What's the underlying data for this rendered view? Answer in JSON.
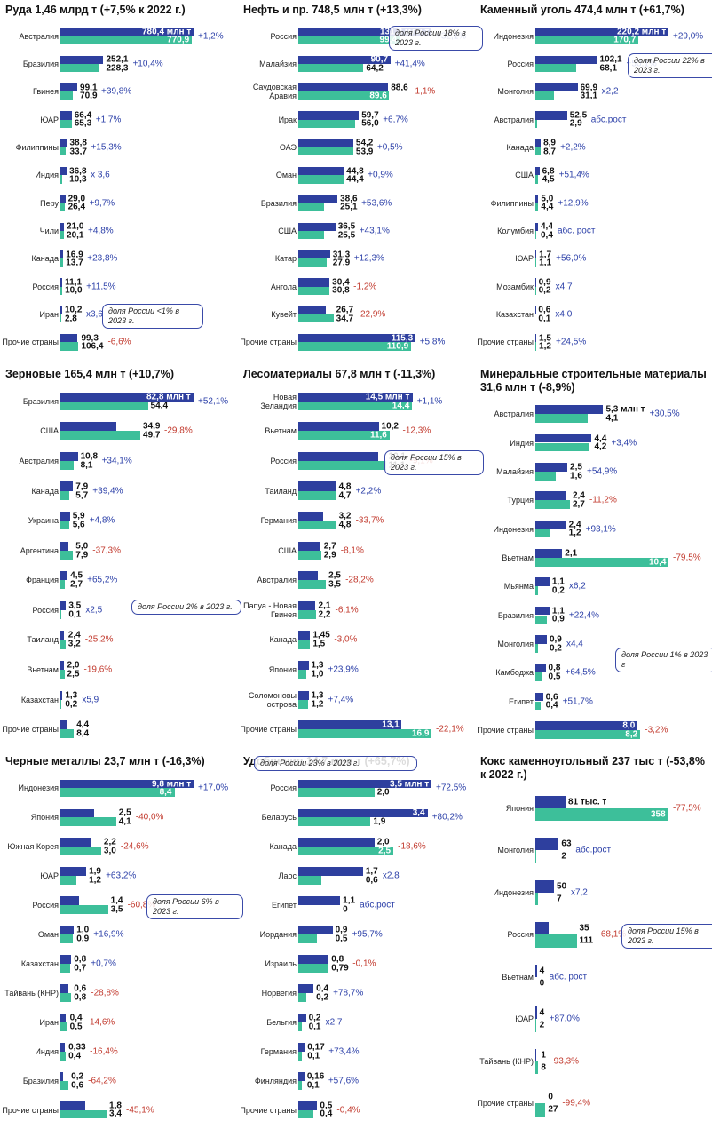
{
  "chart_data": [
    {
      "type": "paired-bar",
      "title": "Руда 1,46 млрд т (+7,5% к 2022 г.)",
      "categories": [
        "Австралия",
        "Бразилия",
        "Гвинея",
        "ЮАР",
        "Филиппины",
        "Индия",
        "Перу",
        "Чили",
        "Канада",
        "Россия",
        "Иран",
        "Прочие страны"
      ],
      "series": [
        {
          "color": "#2e3f9e",
          "values": [
            780.4,
            252.1,
            99.1,
            66.4,
            38.8,
            36.8,
            29.0,
            21.0,
            16.9,
            11.1,
            10.2,
            99.3
          ],
          "value_labels": [
            "780,4 млн т",
            "252,1",
            "99,1",
            "66,4",
            "38,8",
            "36,8",
            "29,0",
            "21,0",
            "16,9",
            "11,1",
            "10,2",
            "99,3"
          ]
        },
        {
          "color": "#3dbf9a",
          "values": [
            770.9,
            228.3,
            70.9,
            65.3,
            33.7,
            10.3,
            26.4,
            20.1,
            13.7,
            10.0,
            2.8,
            106.4
          ],
          "value_labels": [
            "770,9",
            "228,3",
            "70,9",
            "65,3",
            "33,7",
            "10,3",
            "26,4",
            "20,1",
            "13,7",
            "10,0",
            "2,8",
            "106,4"
          ]
        }
      ],
      "changes": [
        "+1,2%",
        "+10,4%",
        "+39,8%",
        "+1,7%",
        "+15,3%",
        "x 3,6",
        "+9,7%",
        "+4,8%",
        "+23,8%",
        "+11,5%",
        "x3,6",
        "-6,6%"
      ],
      "note": "доля России <1% в 2023 г."
    },
    {
      "type": "paired-bar",
      "title": "Нефть и пр. 748,5 млн т (+13,3%)",
      "categories": [
        "Россия",
        "Малайзия",
        "Саудовская Аравия",
        "Ирак",
        "ОАЭ",
        "Оман",
        "Бразилия",
        "США",
        "Катар",
        "Ангола",
        "Кувейт",
        "Прочие страны"
      ],
      "series": [
        {
          "color": "#2e3f9e",
          "values": [
            131.3,
            90.7,
            88.6,
            59.7,
            54.2,
            44.8,
            38.6,
            36.5,
            31.3,
            30.4,
            26.7,
            115.3
          ],
          "value_labels": [
            "131,3 млн т",
            "90,7",
            "88,6",
            "59,7",
            "54,2",
            "44,8",
            "38,6",
            "36,5",
            "31,3",
            "30,4",
            "26,7",
            "115,3"
          ]
        },
        {
          "color": "#3dbf9a",
          "values": [
            99.4,
            64.2,
            89.6,
            56.0,
            53.9,
            44.4,
            25.1,
            25.5,
            27.9,
            30.8,
            34.7,
            110.9
          ],
          "value_labels": [
            "99,4",
            "64,2",
            "89,6",
            "56,0",
            "53,9",
            "44,4",
            "25,1",
            "25,5",
            "27,9",
            "30,8",
            "34,7",
            "110,9"
          ]
        }
      ],
      "changes": [
        "+32,1%",
        "+41,4%",
        "-1,1%",
        "+6,7%",
        "+0,5%",
        "+0,9%",
        "+53,6%",
        "+43,1%",
        "+12,3%",
        "-1,2%",
        "-22,9%",
        "+5,8%"
      ],
      "note": "доля России 18% в 2023 г."
    },
    {
      "type": "paired-bar",
      "title": "Каменный уголь 474,4 млн т (+61,7%)",
      "categories": [
        "Индонезия",
        "Россия",
        "Монголия",
        "Австралия",
        "Канада",
        "США",
        "Филиппины",
        "Колумбия",
        "ЮАР",
        "Мозамбик",
        "Казахстан",
        "Прочие страны"
      ],
      "series": [
        {
          "color": "#2e3f9e",
          "values": [
            220.2,
            102.1,
            69.9,
            52.5,
            8.9,
            6.8,
            5.0,
            4.4,
            1.7,
            0.9,
            0.6,
            1.5
          ],
          "value_labels": [
            "220,2 млн т",
            "102,1",
            "69,9",
            "52,5",
            "8,9",
            "6,8",
            "5,0",
            "4,4",
            "1,7",
            "0,9",
            "0,6",
            "1,5"
          ]
        },
        {
          "color": "#3dbf9a",
          "values": [
            170.7,
            68.1,
            31.1,
            2.9,
            8.7,
            4.5,
            4.4,
            0.4,
            1.1,
            0.2,
            0.1,
            1.2
          ],
          "value_labels": [
            "170,7",
            "68,1",
            "31,1",
            "2,9",
            "8,7",
            "4,5",
            "4,4",
            "0,4",
            "1,1",
            "0,2",
            "0,1",
            "1,2"
          ]
        }
      ],
      "changes": [
        "+29,0%",
        "+50,1%",
        "x2,2",
        "абс.рост",
        "+2,2%",
        "+51,4%",
        "+12,9%",
        "абс. рост",
        "+56,0%",
        "x4,7",
        "x4,0",
        "+24,5%"
      ],
      "note": "доля России 22% в 2023 г."
    },
    {
      "type": "paired-bar",
      "title": "Зерновые 165,4 млн т (+10,7%)",
      "categories": [
        "Бразилия",
        "США",
        "Австралия",
        "Канада",
        "Украина",
        "Аргентина",
        "Франция",
        "Россия",
        "Таиланд",
        "Вьетнам",
        "Казахстан",
        "Прочие страны"
      ],
      "series": [
        {
          "color": "#2e3f9e",
          "values": [
            82.8,
            34.9,
            10.8,
            7.9,
            5.9,
            5.0,
            4.5,
            3.5,
            2.4,
            2.0,
            1.3,
            4.4
          ],
          "value_labels": [
            "82,8 млн т",
            "34,9",
            "10,8",
            "7,9",
            "5,9",
            "5,0",
            "4,5",
            "3,5",
            "2,4",
            "2,0",
            "1,3",
            "4,4"
          ]
        },
        {
          "color": "#3dbf9a",
          "values": [
            54.4,
            49.7,
            8.1,
            5.7,
            5.6,
            7.9,
            2.7,
            0.1,
            3.2,
            2.5,
            0.2,
            8.4
          ],
          "value_labels": [
            "54,4",
            "49,7",
            "8,1",
            "5,7",
            "5,6",
            "7,9",
            "2,7",
            "0,1",
            "3,2",
            "2,5",
            "0,2",
            "8,4"
          ]
        }
      ],
      "changes": [
        "+52,1%",
        "-29,8%",
        "+34,1%",
        "+39,4%",
        "+4,8%",
        "-37,3%",
        "+65,2%",
        "x2,5",
        "-25,2%",
        "-19,6%",
        "x5,9",
        null
      ],
      "note": "доля России 2% в 2023 г."
    },
    {
      "type": "paired-bar",
      "title": "Лесоматериалы 67,8 млн т (-11,3%)",
      "categories": [
        "Новая Зеландия",
        "Вьетнам",
        "Россия",
        "Таиланд",
        "Германия",
        "США",
        "Австралия",
        "Папуа - Новая Гвинея",
        "Канада",
        "Япония",
        "Соломоновы острова",
        "Прочие страны"
      ],
      "series": [
        {
          "color": "#2e3f9e",
          "values": [
            14.5,
            10.2,
            10.1,
            4.8,
            3.2,
            2.7,
            2.5,
            2.1,
            1.45,
            1.3,
            1.3,
            13.1
          ],
          "value_labels": [
            "14,5 млн т",
            "10,2",
            "10,1",
            "4,8",
            "3,2",
            "2,7",
            "2,5",
            "2,1",
            "1,45",
            "1,3",
            "1,3",
            "13,1"
          ]
        },
        {
          "color": "#3dbf9a",
          "values": [
            14.4,
            11.6,
            11.1,
            4.7,
            4.8,
            2.9,
            3.5,
            2.2,
            1.5,
            1.0,
            1.2,
            16.9
          ],
          "value_labels": [
            "14,4",
            "11,6",
            "11,1",
            "4,7",
            "4,8",
            "2,9",
            "3,5",
            "2,2",
            "1,5",
            "1,0",
            "1,2",
            "16,9"
          ]
        }
      ],
      "changes": [
        "+1,1%",
        "-12,3%",
        "-9,1%",
        "+2,2%",
        "-33,7%",
        "-8,1%",
        "-28,2%",
        "-6,1%",
        "-3,0%",
        "+23,9%",
        "+7,4%",
        "-22,1%"
      ],
      "note": "доля России 15% в 2023 г."
    },
    {
      "type": "paired-bar",
      "title": "Минеральные строительные материалы 31,6 млн т (-8,9%)",
      "categories": [
        "Австралия",
        "Индия",
        "Малайзия",
        "Турция",
        "Индонезия",
        "Вьетнам",
        "Мьянма",
        "Бразилия",
        "Монголия",
        "Камбоджа",
        "Египет",
        "Прочие страны"
      ],
      "series": [
        {
          "color": "#2e3f9e",
          "values": [
            5.3,
            4.4,
            2.5,
            2.4,
            2.4,
            2.1,
            1.1,
            1.1,
            0.9,
            0.8,
            0.6,
            8.0
          ],
          "value_labels": [
            "5,3 млн т",
            "4,4",
            "2,5",
            "2,4",
            "2,4",
            "2,1",
            "1,1",
            "1,1",
            "0,9",
            "0,8",
            "0,6",
            "8,0"
          ]
        },
        {
          "color": "#3dbf9a",
          "values": [
            4.1,
            4.2,
            1.6,
            2.7,
            1.2,
            10.4,
            0.2,
            0.9,
            0.2,
            0.5,
            0.4,
            8.2
          ],
          "value_labels": [
            "4,1",
            "4,2",
            "1,6",
            "2,7",
            "1,2",
            "10,4",
            "0,2",
            "0,9",
            "0,2",
            "0,5",
            "0,4",
            "8,2"
          ]
        }
      ],
      "changes": [
        "+30,5%",
        "+3,4%",
        "+54,9%",
        "-11,2%",
        "+93,1%",
        "-79,5%",
        "x6,2",
        "+22,4%",
        "x4,4",
        "+64,5%",
        "+51,7%",
        "-3,2%"
      ],
      "note": "доля России 1% в 2023 г"
    },
    {
      "type": "paired-bar",
      "title": "Черные металлы 23,7 млн т (-16,3%)",
      "categories": [
        "Индонезия",
        "Япония",
        "Южная Корея",
        "ЮАР",
        "Россия",
        "Оман",
        "Казахстан",
        "Тайвань (КНР)",
        "Иран",
        "Индия",
        "Бразилия",
        "Прочие страны"
      ],
      "series": [
        {
          "color": "#2e3f9e",
          "values": [
            9.8,
            2.5,
            2.2,
            1.9,
            1.4,
            1.0,
            0.8,
            0.6,
            0.4,
            0.33,
            0.2,
            1.8
          ],
          "value_labels": [
            "9,8 млн т",
            "2,5",
            "2,2",
            "1,9",
            "1,4",
            "1,0",
            "0,8",
            "0,6",
            "0,4",
            "0,33",
            "0,2",
            "1,8"
          ]
        },
        {
          "color": "#3dbf9a",
          "values": [
            8.4,
            4.1,
            3.0,
            1.2,
            3.5,
            0.9,
            0.7,
            0.8,
            0.5,
            0.4,
            0.6,
            3.4
          ],
          "value_labels": [
            "8,4",
            "4,1",
            "3,0",
            "1,2",
            "3,5",
            "0,9",
            "0,7",
            "0,8",
            "0,5",
            "0,4",
            "0,6",
            "3,4"
          ]
        }
      ],
      "changes": [
        "+17,0%",
        "-40,0%",
        "-24,6%",
        "+63,2%",
        "-60,8%",
        "+16,9%",
        "+0,7%",
        "-28,8%",
        "-14,6%",
        "-16,4%",
        "-64,2%",
        "-45,1%"
      ],
      "note": "доля России 6% в 2023 г."
    },
    {
      "type": "paired-bar",
      "title": "Удобрения 14,7 млн т (+65,7%)",
      "categories": [
        "Россия",
        "Беларусь",
        "Канада",
        "Лаос",
        "Египет",
        "Иордания",
        "Израиль",
        "Норвегия",
        "Бельгия",
        "Германия",
        "Финляндия",
        "Прочие страны"
      ],
      "series": [
        {
          "color": "#2e3f9e",
          "values": [
            3.5,
            3.4,
            2.0,
            1.7,
            1.1,
            0.9,
            0.8,
            0.4,
            0.2,
            0.17,
            0.16,
            0.5
          ],
          "value_labels": [
            "3,5 млн т",
            "3,4",
            "2,0",
            "1,7",
            "1,1",
            "0,9",
            "0,8",
            "0,4",
            "0,2",
            "0,17",
            "0,16",
            "0,5"
          ]
        },
        {
          "color": "#3dbf9a",
          "values": [
            2.0,
            1.9,
            2.5,
            0.6,
            0,
            0.5,
            0.79,
            0.2,
            0.1,
            0.1,
            0.1,
            0.4
          ],
          "value_labels": [
            "2,0",
            "1,9",
            "2,5",
            "0,6",
            "0",
            "0,5",
            "0,79",
            "0,2",
            "0,1",
            "0,1",
            "0,1",
            "0,4"
          ]
        }
      ],
      "changes": [
        "+72,5%",
        "+80,2%",
        "-18,6%",
        "x2,8",
        "абс.рост",
        "+95,7%",
        "-0,1%",
        "+78,7%",
        "x2,7",
        "+73,4%",
        "+57,6%",
        "-0,4%"
      ],
      "note": "доля России 23% в 2023 г."
    },
    {
      "type": "paired-bar",
      "title": "Кокс каменноугольный 237 тыс т (-53,8% к 2022 г.)",
      "categories": [
        "Япония",
        "Монголия",
        "Индонезия",
        "Россия",
        "Вьетнам",
        "ЮАР",
        "Тайвань (КНР)",
        "Прочие страны"
      ],
      "series": [
        {
          "color": "#2e3f9e",
          "values": [
            81,
            63,
            50,
            35,
            4,
            4,
            1,
            0
          ],
          "value_labels": [
            "81 тыс. т",
            "63",
            "50",
            "35",
            "4",
            "4",
            "1",
            "0"
          ]
        },
        {
          "color": "#3dbf9a",
          "values": [
            358,
            2,
            7,
            111,
            0,
            2,
            8,
            27
          ],
          "value_labels": [
            "358",
            "2",
            "7",
            "111",
            "0",
            "2",
            "8",
            "27"
          ]
        }
      ],
      "changes": [
        "-77,5%",
        "абс.рост",
        "x7,2",
        "-68,1%",
        "абс. рост",
        "+87,0%",
        "-93,3%",
        "-99,4%"
      ],
      "note": "доля России 15% в 2023 г."
    }
  ]
}
